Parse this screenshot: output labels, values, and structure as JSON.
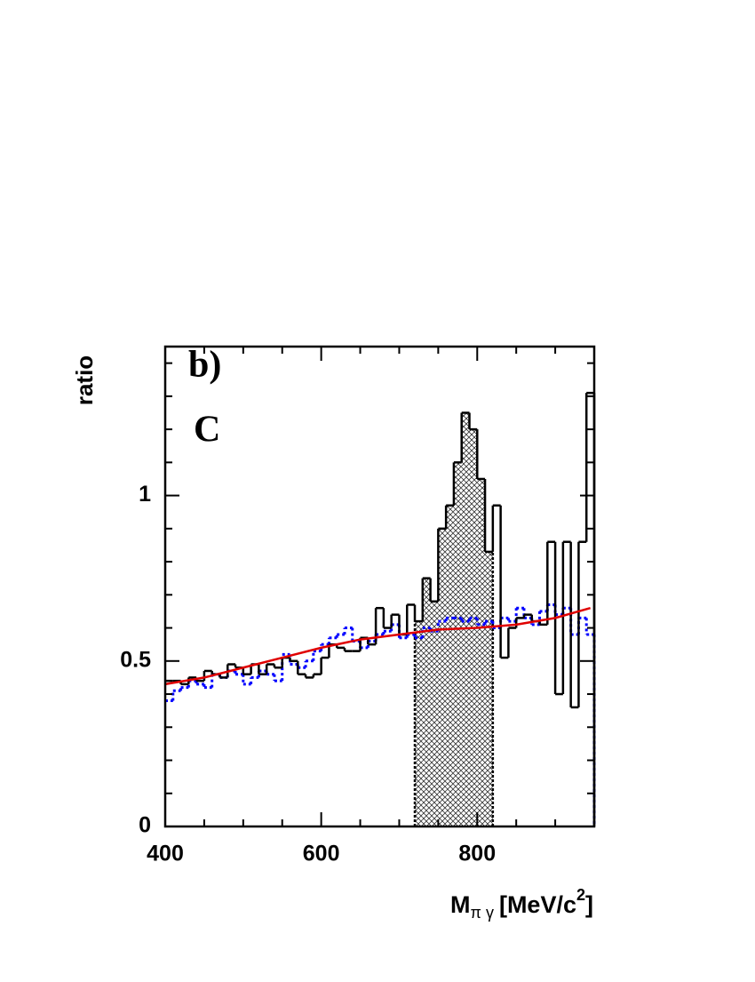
{
  "chart_data": {
    "type": "histogram",
    "panel_label": "b)",
    "annotation": "C",
    "ylabel": "ratio",
    "xlabel": {
      "main": "M",
      "sub": "π γ",
      "unit": "[MeV/c",
      "sup": "2",
      "end": "]"
    },
    "xlim": [
      400,
      950
    ],
    "ylim": [
      0,
      1.45
    ],
    "xticks": [
      400,
      600,
      800
    ],
    "yticks": [
      0,
      0.5,
      1
    ],
    "xminorticks": [
      450,
      500,
      550,
      650,
      700,
      750,
      850,
      900
    ],
    "yminorticks": [
      0.1,
      0.2,
      0.3,
      0.4,
      0.6,
      0.7,
      0.8,
      0.9,
      1.1,
      1.2,
      1.3,
      1.4
    ],
    "bins": [
      400,
      410,
      420,
      430,
      440,
      450,
      460,
      470,
      480,
      490,
      500,
      510,
      520,
      530,
      540,
      550,
      560,
      570,
      580,
      590,
      600,
      610,
      620,
      630,
      640,
      650,
      660,
      670,
      680,
      690,
      700,
      710,
      720,
      730,
      740,
      750,
      760,
      770,
      780,
      790,
      800,
      810,
      820,
      830,
      840,
      850,
      860,
      870,
      880,
      890,
      900,
      910,
      920,
      930,
      940,
      950
    ],
    "shaded_xlim": [
      720,
      820
    ],
    "series": [
      {
        "color": "#000000",
        "style": "solid",
        "values": [
          0.44,
          0.44,
          0.43,
          0.45,
          0.44,
          0.47,
          0.46,
          0.45,
          0.49,
          0.48,
          0.46,
          0.49,
          0.46,
          0.49,
          0.48,
          0.51,
          0.5,
          0.46,
          0.45,
          0.46,
          0.51,
          0.55,
          0.54,
          0.53,
          0.53,
          0.57,
          0.55,
          0.66,
          0.6,
          0.64,
          0.58,
          0.67,
          0.62,
          0.75,
          0.68,
          0.9,
          0.97,
          1.1,
          1.25,
          1.2,
          1.05,
          0.83,
          0.97,
          0.51,
          0.6,
          0.63,
          0.64,
          0.62,
          0.61,
          0.86,
          0.4,
          0.86,
          0.36,
          0.86,
          1.31
        ]
      },
      {
        "color": "#0000ff",
        "style": "dotted",
        "values": [
          0.38,
          0.41,
          0.42,
          0.44,
          0.43,
          0.42,
          0.46,
          0.45,
          0.47,
          0.46,
          0.43,
          0.45,
          0.47,
          0.46,
          0.44,
          0.52,
          0.49,
          0.48,
          0.5,
          0.53,
          0.55,
          0.57,
          0.58,
          0.6,
          0.56,
          0.54,
          0.56,
          0.58,
          0.59,
          0.61,
          0.57,
          0.58,
          0.57,
          0.6,
          0.59,
          0.62,
          0.63,
          0.63,
          0.62,
          0.63,
          0.61,
          0.62,
          0.6,
          0.63,
          0.62,
          0.66,
          0.63,
          0.61,
          0.65,
          0.67,
          0.64,
          0.66,
          0.58,
          0.63,
          0.58
        ]
      }
    ],
    "fit": {
      "color": "#e00000",
      "x": [
        400,
        450,
        500,
        550,
        600,
        650,
        700,
        750,
        800,
        850,
        900,
        945
      ],
      "values": [
        0.43,
        0.45,
        0.48,
        0.51,
        0.54,
        0.565,
        0.58,
        0.595,
        0.6,
        0.61,
        0.63,
        0.66
      ]
    }
  }
}
